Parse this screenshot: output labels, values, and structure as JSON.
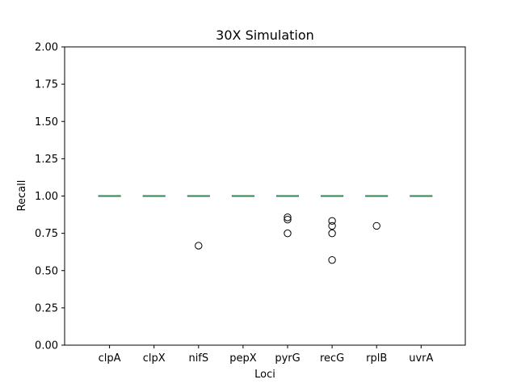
{
  "chart_data": {
    "type": "box",
    "title": "30X Simulation",
    "xlabel": "Loci",
    "ylabel": "Recall",
    "ylim": [
      0,
      2
    ],
    "yticks": [
      "0.00",
      "0.25",
      "0.50",
      "0.75",
      "1.00",
      "1.25",
      "1.50",
      "1.75",
      "2.00"
    ],
    "categories": [
      "clpA",
      "clpX",
      "nifS",
      "pepX",
      "pyrG",
      "recG",
      "rplB",
      "uvrA"
    ],
    "medians": [
      1.0,
      1.0,
      1.0,
      1.0,
      1.0,
      1.0,
      1.0,
      1.0
    ],
    "outliers": [
      [],
      [],
      [
        0.667
      ],
      [],
      [
        0.857,
        0.842,
        0.75
      ],
      [
        0.833,
        0.8,
        0.75,
        0.571
      ],
      [
        0.8
      ],
      []
    ],
    "colors": {
      "median": "#3a8a5a",
      "box": "#1f4e8c",
      "outlier_edge": "#000000",
      "axes": "#000000"
    }
  }
}
